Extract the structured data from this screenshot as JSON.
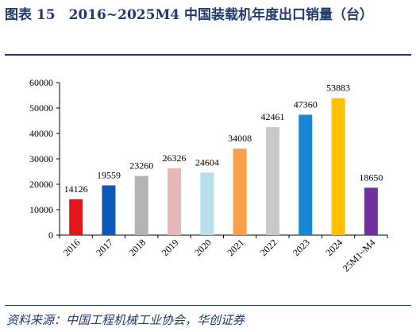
{
  "title": "图表 15　2016~2025M4 中国装载机年度出口销量（台）",
  "source": "资料来源：中国工程机械工业协会，华创证券",
  "chart_data": {
    "type": "bar",
    "categories": [
      "2016",
      "2017",
      "2018",
      "2019",
      "2020",
      "2021",
      "2022",
      "2023",
      "2024",
      "25M1~M4"
    ],
    "values": [
      14126,
      19559,
      23260,
      26326,
      24604,
      34008,
      42461,
      47360,
      53883,
      18650
    ],
    "data_labels": [
      "14126",
      "19559",
      "23260",
      "26326",
      "24604",
      "34008",
      "42461",
      "47360",
      "53883",
      "18650"
    ],
    "colors": [
      "#e3161b",
      "#0a5cb8",
      "#b3b3b3",
      "#e8b8b8",
      "#b9dfea",
      "#f6a04d",
      "#c8c8c8",
      "#1a86d6",
      "#ffc000",
      "#7030a0"
    ],
    "ylim": [
      0,
      60000
    ],
    "yticks": [
      "0",
      "10000",
      "20000",
      "30000",
      "40000",
      "50000",
      "60000"
    ],
    "ytick_values": [
      0,
      10000,
      20000,
      30000,
      40000,
      50000,
      60000
    ],
    "grid": false,
    "legend": "none"
  }
}
